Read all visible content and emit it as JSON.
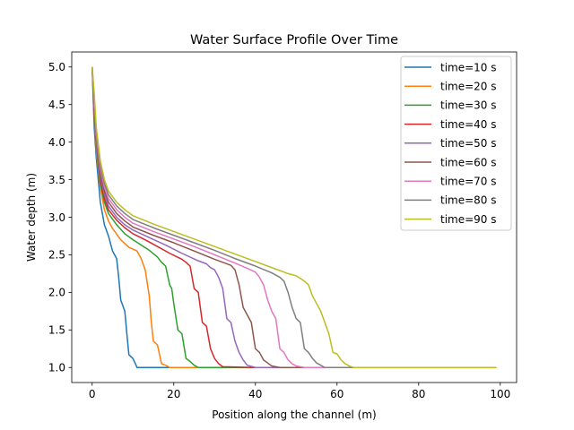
{
  "chart_data": {
    "type": "line",
    "title": "Water Surface Profile Over Time",
    "xlabel": "Position along the channel (m)",
    "ylabel": "Water depth (m)",
    "xlim": [
      -5,
      104
    ],
    "ylim": [
      0.8,
      5.2
    ],
    "xticks": [
      0,
      20,
      40,
      60,
      80,
      100
    ],
    "yticks": [
      1.0,
      1.5,
      2.0,
      2.5,
      3.0,
      3.5,
      4.0,
      4.5,
      5.0
    ],
    "grid": false,
    "legend_position": "top-right",
    "series": [
      {
        "name": "time=10 s",
        "color": "#1f77b4",
        "x": [
          0,
          0.5,
          1,
          1.5,
          2,
          3,
          4,
          5,
          6,
          6.5,
          7,
          8,
          8.5,
          9,
          10,
          11,
          15,
          20,
          40,
          99
        ],
        "y": [
          5.0,
          4.2,
          3.8,
          3.5,
          3.2,
          2.9,
          2.75,
          2.55,
          2.45,
          2.2,
          1.9,
          1.75,
          1.45,
          1.17,
          1.12,
          1.0,
          1.0,
          1.0,
          1.0,
          1.0
        ]
      },
      {
        "name": "time=20 s",
        "color": "#ff7f0e",
        "x": [
          0,
          0.5,
          1,
          2,
          3,
          4,
          5,
          7,
          9,
          11,
          12,
          13,
          14,
          14.5,
          15,
          16,
          17,
          18,
          19,
          20,
          40,
          99
        ],
        "y": [
          5.0,
          4.3,
          3.9,
          3.4,
          3.1,
          2.95,
          2.85,
          2.7,
          2.6,
          2.55,
          2.45,
          2.3,
          1.95,
          1.6,
          1.35,
          1.3,
          1.05,
          1.03,
          1.0,
          1.0,
          1.0,
          1.0
        ]
      },
      {
        "name": "time=30 s",
        "color": "#2ca02c",
        "x": [
          0,
          0.5,
          1,
          2,
          3,
          4,
          6,
          8,
          10,
          12,
          14,
          16,
          17,
          18,
          19,
          19.5,
          20,
          21,
          22,
          23,
          24,
          25,
          26,
          40,
          99
        ],
        "y": [
          5.0,
          4.35,
          3.95,
          3.45,
          3.2,
          3.05,
          2.9,
          2.78,
          2.7,
          2.63,
          2.56,
          2.47,
          2.4,
          2.35,
          2.1,
          2.05,
          1.85,
          1.5,
          1.45,
          1.12,
          1.08,
          1.03,
          1.0,
          1.0,
          1.0
        ]
      },
      {
        "name": "time=40 s",
        "color": "#d62728",
        "x": [
          0,
          0.5,
          1,
          2,
          3,
          4,
          6,
          8,
          10,
          13,
          16,
          19,
          22,
          23,
          24,
          24.5,
          25,
          26,
          27,
          28,
          29,
          30,
          31,
          32,
          40,
          99
        ],
        "y": [
          5.0,
          4.4,
          4.0,
          3.5,
          3.25,
          3.1,
          2.96,
          2.86,
          2.78,
          2.7,
          2.61,
          2.52,
          2.44,
          2.4,
          2.35,
          2.2,
          2.05,
          2.0,
          1.6,
          1.55,
          1.25,
          1.12,
          1.05,
          1.01,
          1.0,
          1.0
        ]
      },
      {
        "name": "time=50 s",
        "color": "#9467bd",
        "x": [
          0,
          0.5,
          1,
          2,
          3,
          4,
          6,
          8,
          10,
          14,
          18,
          22,
          26,
          28,
          29,
          30,
          31,
          32,
          33,
          34,
          35,
          36,
          37,
          38,
          40,
          99
        ],
        "y": [
          5.0,
          4.45,
          4.0,
          3.55,
          3.3,
          3.15,
          3.0,
          2.9,
          2.83,
          2.73,
          2.63,
          2.52,
          2.42,
          2.38,
          2.33,
          2.3,
          2.2,
          2.05,
          1.65,
          1.6,
          1.35,
          1.2,
          1.1,
          1.03,
          1.0,
          1.0
        ]
      },
      {
        "name": "time=60 s",
        "color": "#8c564b",
        "x": [
          0,
          0.5,
          1,
          2,
          3,
          4,
          6,
          8,
          10,
          15,
          20,
          25,
          30,
          34,
          35,
          36,
          37,
          38,
          39,
          40,
          41,
          42,
          43,
          44,
          46,
          99
        ],
        "y": [
          5.0,
          4.5,
          4.05,
          3.6,
          3.35,
          3.2,
          3.05,
          2.95,
          2.87,
          2.76,
          2.66,
          2.55,
          2.44,
          2.36,
          2.3,
          2.1,
          1.8,
          1.7,
          1.6,
          1.25,
          1.2,
          1.1,
          1.06,
          1.02,
          1.0,
          1.0
        ]
      },
      {
        "name": "time=70 s",
        "color": "#e377c2",
        "x": [
          0,
          0.5,
          1,
          2,
          3,
          4,
          6,
          8,
          10,
          15,
          20,
          25,
          30,
          35,
          38,
          40,
          41,
          42,
          43,
          44,
          45,
          46,
          47,
          48,
          49,
          50,
          52,
          99
        ],
        "y": [
          5.0,
          4.55,
          4.1,
          3.65,
          3.4,
          3.25,
          3.1,
          3.0,
          2.92,
          2.81,
          2.71,
          2.61,
          2.5,
          2.39,
          2.32,
          2.27,
          2.2,
          2.1,
          1.9,
          1.75,
          1.65,
          1.25,
          1.2,
          1.1,
          1.05,
          1.02,
          1.0,
          1.0
        ]
      },
      {
        "name": "time=80 s",
        "color": "#7f7f7f",
        "x": [
          0,
          0.5,
          1,
          2,
          3,
          4,
          6,
          8,
          10,
          15,
          20,
          25,
          30,
          35,
          40,
          44,
          46,
          47,
          48,
          49,
          50,
          51,
          52,
          53,
          54,
          55,
          57,
          99
        ],
        "y": [
          5.0,
          4.6,
          4.15,
          3.7,
          3.45,
          3.3,
          3.15,
          3.05,
          2.97,
          2.86,
          2.76,
          2.66,
          2.56,
          2.45,
          2.35,
          2.26,
          2.2,
          2.15,
          2.0,
          1.8,
          1.65,
          1.6,
          1.25,
          1.2,
          1.12,
          1.06,
          1.0,
          1.0
        ]
      },
      {
        "name": "time=90 s",
        "color": "#bcbd22",
        "x": [
          0,
          0.5,
          1,
          2,
          3,
          4,
          6,
          8,
          10,
          15,
          20,
          25,
          30,
          35,
          40,
          45,
          48,
          50,
          52,
          53,
          54,
          55,
          56,
          57,
          58,
          59,
          60,
          61,
          62,
          63,
          64,
          99
        ],
        "y": [
          5.0,
          4.65,
          4.2,
          3.75,
          3.5,
          3.35,
          3.2,
          3.1,
          3.02,
          2.91,
          2.81,
          2.71,
          2.61,
          2.51,
          2.41,
          2.31,
          2.25,
          2.22,
          2.15,
          2.1,
          1.95,
          1.85,
          1.75,
          1.6,
          1.45,
          1.2,
          1.18,
          1.1,
          1.05,
          1.02,
          1.0,
          1.0
        ]
      }
    ]
  }
}
